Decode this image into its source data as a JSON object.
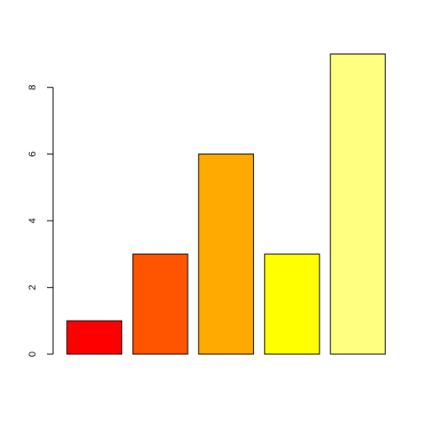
{
  "chart_data": {
    "type": "bar",
    "categories": [
      "",
      "",
      "",
      "",
      ""
    ],
    "values": [
      1,
      3,
      6,
      3,
      9
    ],
    "colors": [
      "#FF0000",
      "#FF5500",
      "#FFAA00",
      "#FFFF00",
      "#FFFF80"
    ],
    "ylim": [
      0,
      9
    ],
    "yticks": [
      0,
      2,
      4,
      6,
      8
    ],
    "ytick_labels": [
      "0",
      "2",
      "4",
      "6",
      "8"
    ],
    "grid": false,
    "legend": false
  }
}
